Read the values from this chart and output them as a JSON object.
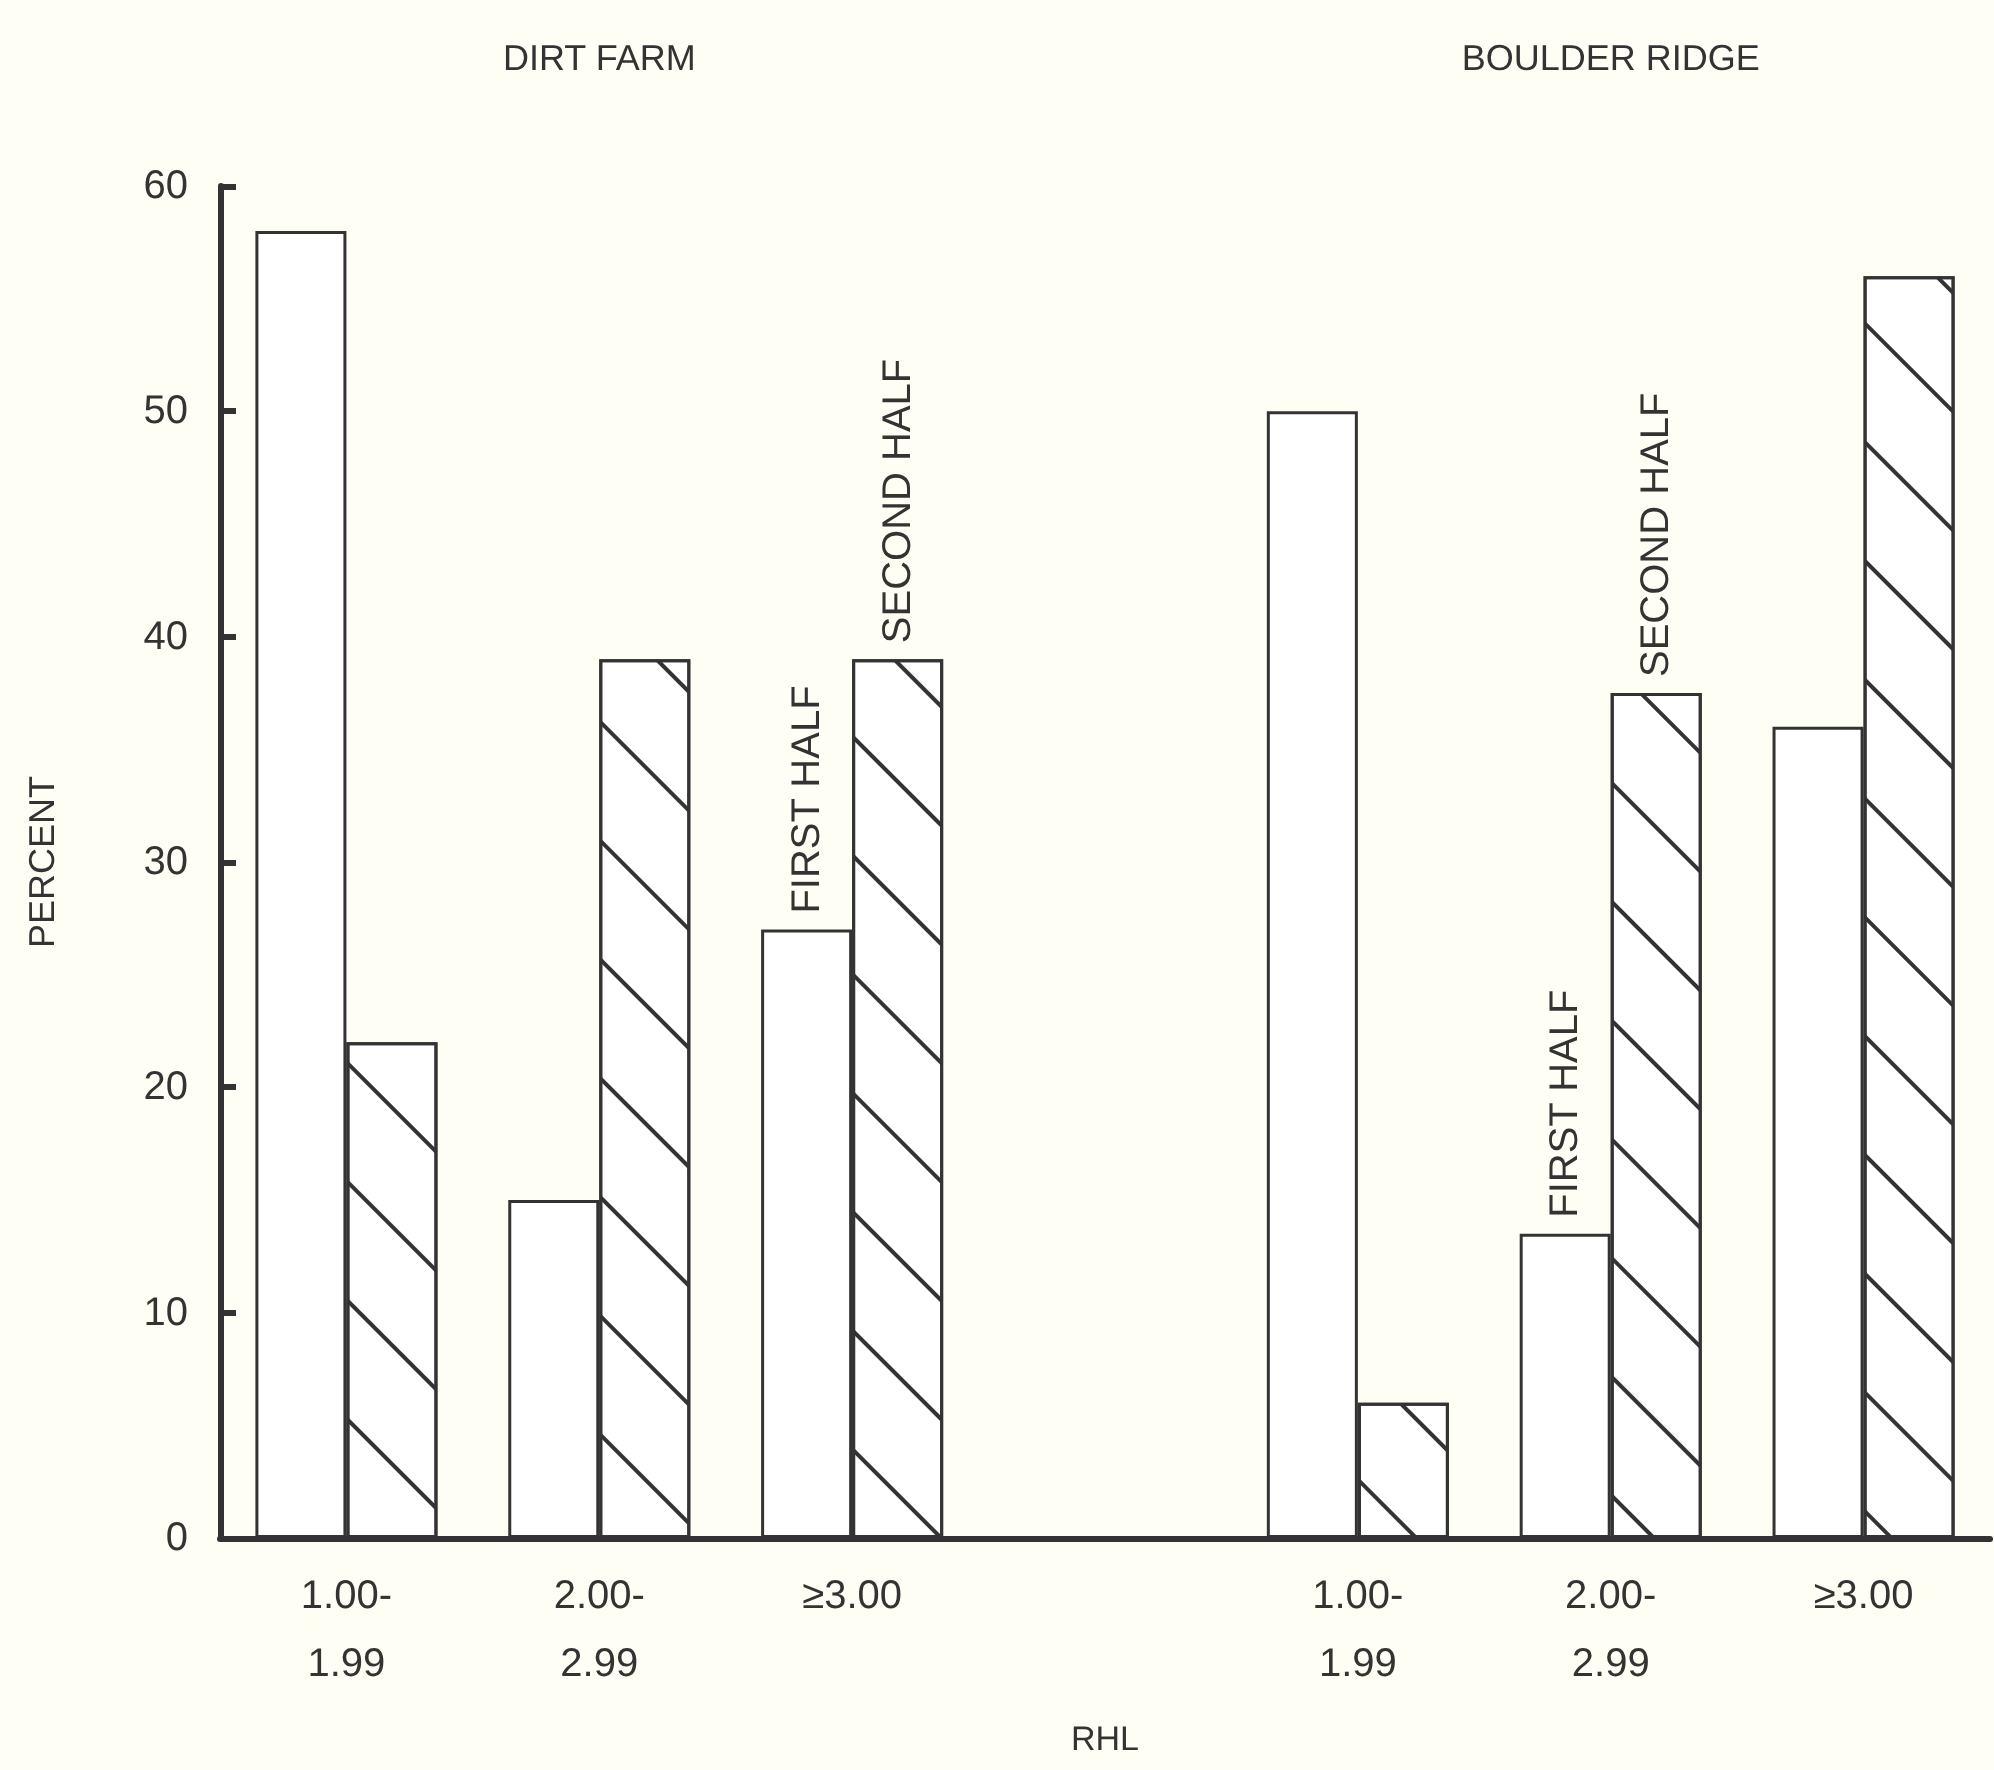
{
  "chart_data": {
    "type": "bar",
    "categories": [
      "1.00-\n1.99",
      "2.00-\n2.99",
      "≥3.00",
      null,
      "1.00-\n1.99",
      "2.00-\n2.99",
      "≥3.00"
    ],
    "series": [
      {
        "name": "FIRST HALF",
        "color": "#ffffff",
        "values": [
          58,
          15,
          27,
          null,
          50,
          13.5,
          36
        ]
      },
      {
        "name": "SECOND HALF",
        "color": "#ffffff",
        "values": [
          22,
          39,
          39,
          null,
          6,
          37.5,
          56
        ]
      }
    ],
    "ylabel": "PERCENT",
    "xlabel": "RHL",
    "annotations": [
      "DIRT FARM",
      "BOULDER RIDGE"
    ],
    "ylim": [
      0,
      60
    ],
    "yticks": [
      0,
      10,
      20,
      30,
      40,
      50,
      60
    ],
    "grid": false,
    "legend": false
  }
}
